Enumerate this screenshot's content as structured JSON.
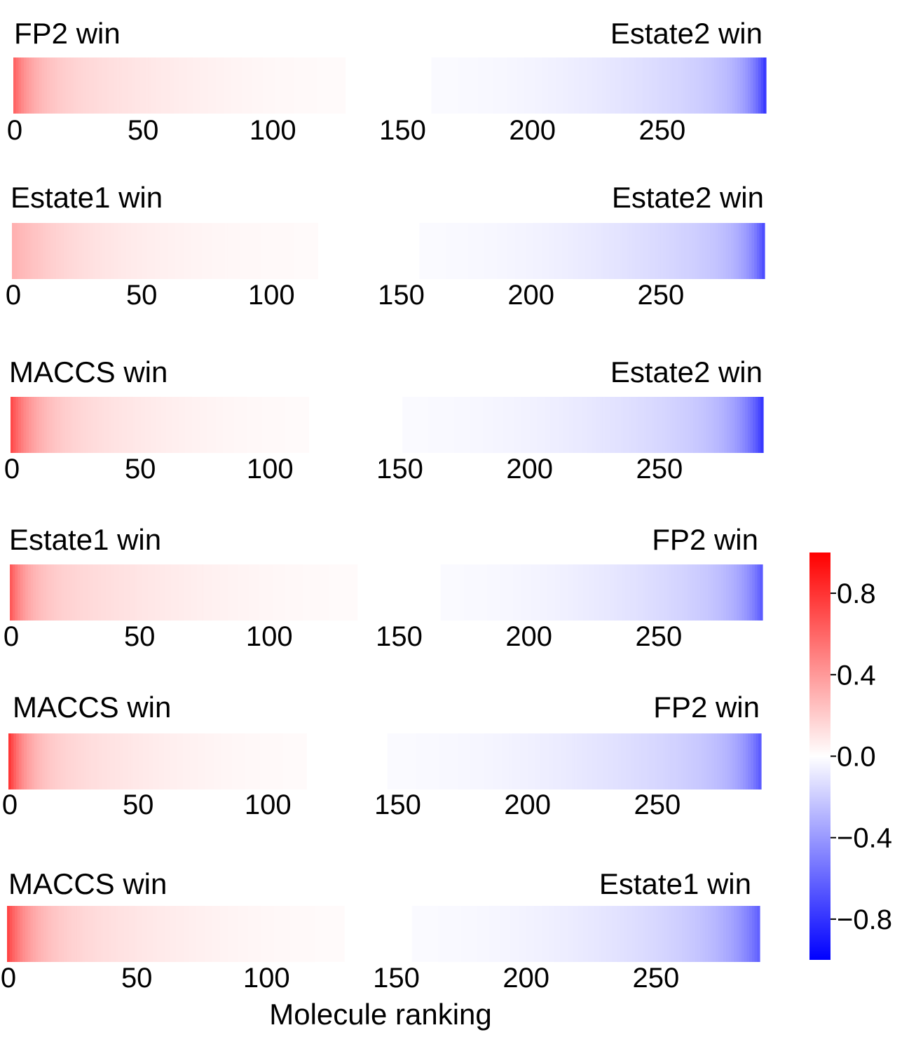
{
  "chart_data": {
    "type": "heatmap",
    "xlabel": "Molecule ranking",
    "x_ticks": [
      "0",
      "50",
      "100",
      "150",
      "200",
      "250"
    ],
    "x_tick_values": [
      0,
      50,
      100,
      150,
      200,
      250
    ],
    "xlim": [
      0,
      290
    ],
    "colormap": "bwr",
    "color_range": [
      -1,
      1
    ],
    "colorbar": {
      "ticks": [
        "0.8",
        "0.4",
        "0.0",
        "−0.4",
        "−0.8"
      ],
      "tick_values": [
        0.8,
        0.4,
        0.0,
        -0.4,
        -0.8
      ],
      "placement": "right"
    },
    "panels": [
      {
        "left_label": "FP2 win",
        "right_label": "Estate2 win",
        "profile": {
          "red_peak": 0.65,
          "red_decay": 7,
          "zero_start": 128,
          "zero_end": 160,
          "blue_peak": 0.85,
          "blue_decay": 6
        }
      },
      {
        "left_label": "Estate1 win",
        "right_label": "Estate2 win",
        "profile": {
          "red_peak": 0.32,
          "red_decay": 20,
          "zero_start": 118,
          "zero_end": 156,
          "blue_peak": 0.72,
          "blue_decay": 6
        }
      },
      {
        "left_label": "MACCS win",
        "right_label": "Estate2 win",
        "profile": {
          "red_peak": 0.82,
          "red_decay": 8,
          "zero_start": 115,
          "zero_end": 150,
          "blue_peak": 0.85,
          "blue_decay": 8
        }
      },
      {
        "left_label": "Estate1 win",
        "right_label": "FP2 win",
        "profile": {
          "red_peak": 0.72,
          "red_decay": 6,
          "zero_start": 134,
          "zero_end": 165,
          "blue_peak": 0.62,
          "blue_decay": 7
        }
      },
      {
        "left_label": "MACCS win",
        "right_label": "FP2 win",
        "profile": {
          "red_peak": 0.95,
          "red_decay": 6,
          "zero_start": 115,
          "zero_end": 145,
          "blue_peak": 0.62,
          "blue_decay": 7
        }
      },
      {
        "left_label": "MACCS win",
        "right_label": "Estate1 win",
        "profile": {
          "red_peak": 0.85,
          "red_decay": 8,
          "zero_start": 130,
          "zero_end": 155,
          "blue_peak": 0.58,
          "blue_decay": 10
        }
      }
    ]
  }
}
